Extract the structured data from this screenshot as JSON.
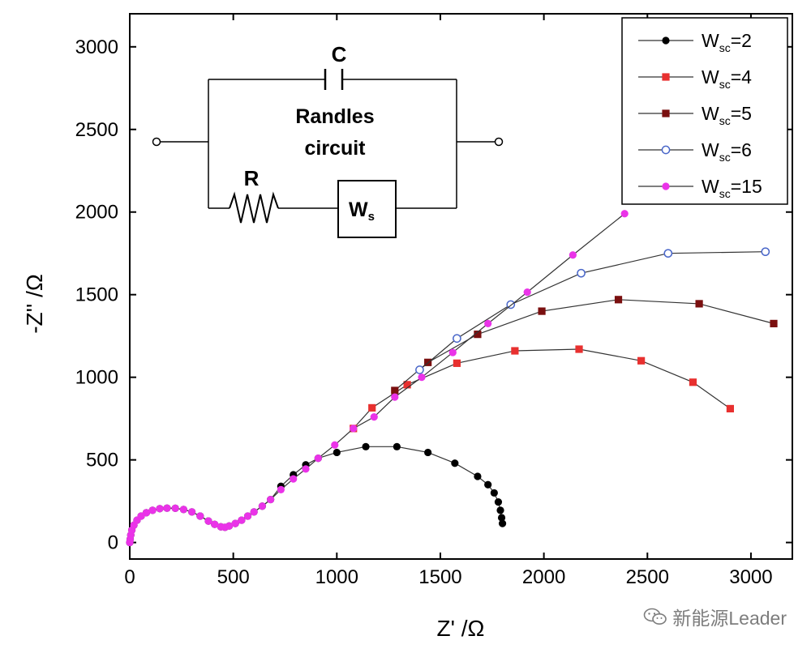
{
  "chart_data": {
    "type": "scatter",
    "xlabel": "Z' /Ω",
    "ylabel": "-Z'' /Ω",
    "xlim": [
      0,
      3200
    ],
    "ylim": [
      -100,
      3200
    ],
    "xticks": [
      0,
      500,
      1000,
      1500,
      2000,
      2500,
      3000
    ],
    "yticks": [
      0,
      500,
      1000,
      1500,
      2000,
      2500,
      3000
    ],
    "grid": false,
    "legend_position": "top-right",
    "series": [
      {
        "name": "W_sc=2",
        "label_main": "W",
        "label_sub": "sc",
        "label_suffix": "=2",
        "color": "#000000",
        "marker": "filled-circle",
        "points": [
          [
            0,
            0
          ],
          [
            2,
            20
          ],
          [
            5,
            45
          ],
          [
            10,
            75
          ],
          [
            20,
            105
          ],
          [
            35,
            135
          ],
          [
            55,
            160
          ],
          [
            80,
            180
          ],
          [
            110,
            195
          ],
          [
            145,
            205
          ],
          [
            180,
            208
          ],
          [
            220,
            207
          ],
          [
            260,
            200
          ],
          [
            300,
            185
          ],
          [
            340,
            160
          ],
          [
            380,
            130
          ],
          [
            410,
            110
          ],
          [
            440,
            95
          ],
          [
            460,
            92
          ],
          [
            480,
            100
          ],
          [
            510,
            115
          ],
          [
            540,
            135
          ],
          [
            570,
            160
          ],
          [
            600,
            185
          ],
          [
            640,
            220
          ],
          [
            680,
            260
          ],
          [
            730,
            340
          ],
          [
            790,
            410
          ],
          [
            850,
            470
          ],
          [
            910,
            510
          ],
          [
            1000,
            545
          ],
          [
            1140,
            580
          ],
          [
            1290,
            580
          ],
          [
            1440,
            545
          ],
          [
            1570,
            480
          ],
          [
            1680,
            400
          ],
          [
            1730,
            350
          ],
          [
            1760,
            300
          ],
          [
            1780,
            245
          ],
          [
            1790,
            195
          ],
          [
            1796,
            150
          ],
          [
            1800,
            115
          ]
        ]
      },
      {
        "name": "W_sc=4",
        "label_main": "W",
        "label_sub": "sc",
        "label_suffix": "=4",
        "color": "#e8302f",
        "marker": "filled-square",
        "points": [
          [
            1080,
            690
          ],
          [
            1170,
            815
          ],
          [
            1340,
            955
          ],
          [
            1580,
            1085
          ],
          [
            1860,
            1160
          ],
          [
            2170,
            1170
          ],
          [
            2470,
            1100
          ],
          [
            2720,
            970
          ],
          [
            2900,
            810
          ]
        ]
      },
      {
        "name": "W_sc=5",
        "label_main": "W",
        "label_sub": "sc",
        "label_suffix": "=5",
        "color": "#7a0f0f",
        "marker": "filled-square",
        "points": [
          [
            1280,
            920
          ],
          [
            1440,
            1090
          ],
          [
            1680,
            1260
          ],
          [
            1990,
            1400
          ],
          [
            2360,
            1470
          ],
          [
            2750,
            1445
          ],
          [
            3110,
            1325
          ]
        ]
      },
      {
        "name": "W_sc=6",
        "label_main": "W",
        "label_sub": "sc",
        "label_suffix": "=6",
        "color": "#4a67c9",
        "marker": "open-circle",
        "points": [
          [
            1400,
            1045
          ],
          [
            1580,
            1235
          ],
          [
            1840,
            1440
          ],
          [
            2180,
            1630
          ],
          [
            2600,
            1750
          ],
          [
            3070,
            1760
          ]
        ]
      },
      {
        "name": "W_sc=15",
        "label_main": "W",
        "label_sub": "sc",
        "label_suffix": "=15",
        "color": "#ea33e8",
        "marker": "filled-circle",
        "points": [
          [
            0,
            0
          ],
          [
            2,
            20
          ],
          [
            5,
            45
          ],
          [
            10,
            75
          ],
          [
            20,
            105
          ],
          [
            35,
            135
          ],
          [
            55,
            160
          ],
          [
            80,
            180
          ],
          [
            110,
            195
          ],
          [
            145,
            205
          ],
          [
            180,
            208
          ],
          [
            220,
            207
          ],
          [
            260,
            200
          ],
          [
            300,
            185
          ],
          [
            340,
            160
          ],
          [
            380,
            130
          ],
          [
            410,
            110
          ],
          [
            440,
            95
          ],
          [
            460,
            92
          ],
          [
            480,
            100
          ],
          [
            510,
            115
          ],
          [
            540,
            135
          ],
          [
            570,
            160
          ],
          [
            600,
            185
          ],
          [
            640,
            220
          ],
          [
            680,
            260
          ],
          [
            730,
            320
          ],
          [
            790,
            385
          ],
          [
            850,
            445
          ],
          [
            910,
            510
          ],
          [
            990,
            590
          ],
          [
            1080,
            690
          ],
          [
            1180,
            760
          ],
          [
            1280,
            880
          ],
          [
            1410,
            1000
          ],
          [
            1560,
            1150
          ],
          [
            1730,
            1325
          ],
          [
            1920,
            1515
          ],
          [
            2140,
            1740
          ],
          [
            2390,
            1990
          ]
        ]
      }
    ]
  },
  "inset": {
    "title_line1": "Randles",
    "title_line2": "circuit",
    "capacitor_label": "C",
    "resistor_label": "R",
    "warburg_main": "W",
    "warburg_sub": "s"
  },
  "watermark": {
    "text": "新能源Leader",
    "icon": "wechat-icon"
  }
}
